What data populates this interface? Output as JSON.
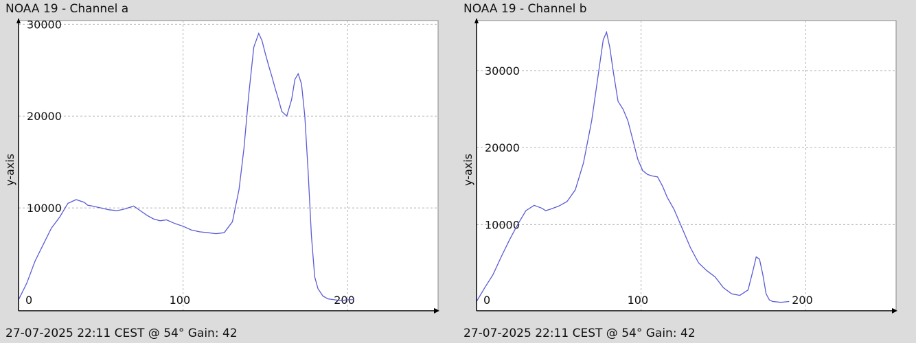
{
  "chart_data": [
    {
      "type": "line",
      "title": "NOAA 19 - Channel a",
      "footer": "27-07-2025 22:11 CEST @ 54° Gain: 42",
      "ylabel": "y-axis",
      "xlabel": "",
      "xlim": [
        0,
        255
      ],
      "ylim": [
        -1200,
        30400
      ],
      "xticks": [
        0,
        100,
        200
      ],
      "yticks": [
        10000,
        20000,
        30000
      ],
      "grid": true,
      "line_color": "#5a5ad6",
      "series": [
        {
          "x": [
            0,
            5,
            10,
            15,
            20,
            25,
            30,
            35,
            40,
            42,
            45,
            50,
            55,
            60,
            65,
            70,
            74,
            78,
            82,
            86,
            90,
            95,
            100,
            105,
            110,
            115,
            120,
            125,
            130,
            134,
            137,
            140,
            143,
            146,
            148,
            150,
            152,
            154,
            156,
            158,
            160,
            163,
            166,
            168,
            170,
            172,
            174,
            176,
            178,
            180,
            182,
            185,
            188,
            192,
            196,
            200,
            204
          ],
          "values": [
            0,
            1800,
            4200,
            6000,
            7800,
            9000,
            10500,
            10900,
            10600,
            10300,
            10200,
            10000,
            9800,
            9700,
            9900,
            10200,
            9700,
            9200,
            8800,
            8600,
            8700,
            8300,
            8000,
            7600,
            7400,
            7300,
            7200,
            7300,
            8500,
            12000,
            16500,
            22500,
            27500,
            29000,
            28200,
            26800,
            25500,
            24300,
            23000,
            21800,
            20500,
            20000,
            21800,
            24000,
            24600,
            23500,
            20000,
            14000,
            7000,
            2500,
            1200,
            400,
            100,
            0,
            -100,
            0,
            0
          ]
        }
      ]
    },
    {
      "type": "line",
      "title": "NOAA 19 - Channel b",
      "footer": "27-07-2025 22:11 CEST @ 54° Gain: 42",
      "ylabel": "y-axis",
      "xlabel": "",
      "xlim": [
        0,
        255
      ],
      "ylim": [
        -1200,
        36500
      ],
      "xticks": [
        0,
        100,
        200
      ],
      "yticks": [
        10000,
        20000,
        30000
      ],
      "grid": true,
      "line_color": "#5a5ad6",
      "series": [
        {
          "x": [
            0,
            5,
            10,
            15,
            20,
            25,
            30,
            35,
            40,
            42,
            45,
            50,
            55,
            60,
            65,
            70,
            73,
            75,
            77,
            79,
            81,
            83,
            86,
            89,
            92,
            95,
            98,
            101,
            104,
            107,
            110,
            113,
            116,
            120,
            125,
            130,
            135,
            140,
            145,
            150,
            155,
            160,
            165,
            168,
            170,
            172,
            174,
            176,
            178,
            180,
            185,
            190
          ],
          "values": [
            0,
            1800,
            3500,
            5800,
            8000,
            10000,
            11800,
            12500,
            12100,
            11800,
            12000,
            12400,
            13000,
            14500,
            18000,
            23500,
            28000,
            31000,
            34000,
            35000,
            33000,
            30000,
            26000,
            25000,
            23500,
            21000,
            18500,
            17000,
            16500,
            16300,
            16200,
            15000,
            13500,
            12000,
            9500,
            7000,
            5000,
            4000,
            3200,
            1800,
            1000,
            800,
            1500,
            4000,
            5800,
            5500,
            3500,
            1000,
            200,
            0,
            -100,
            0
          ]
        }
      ]
    }
  ]
}
